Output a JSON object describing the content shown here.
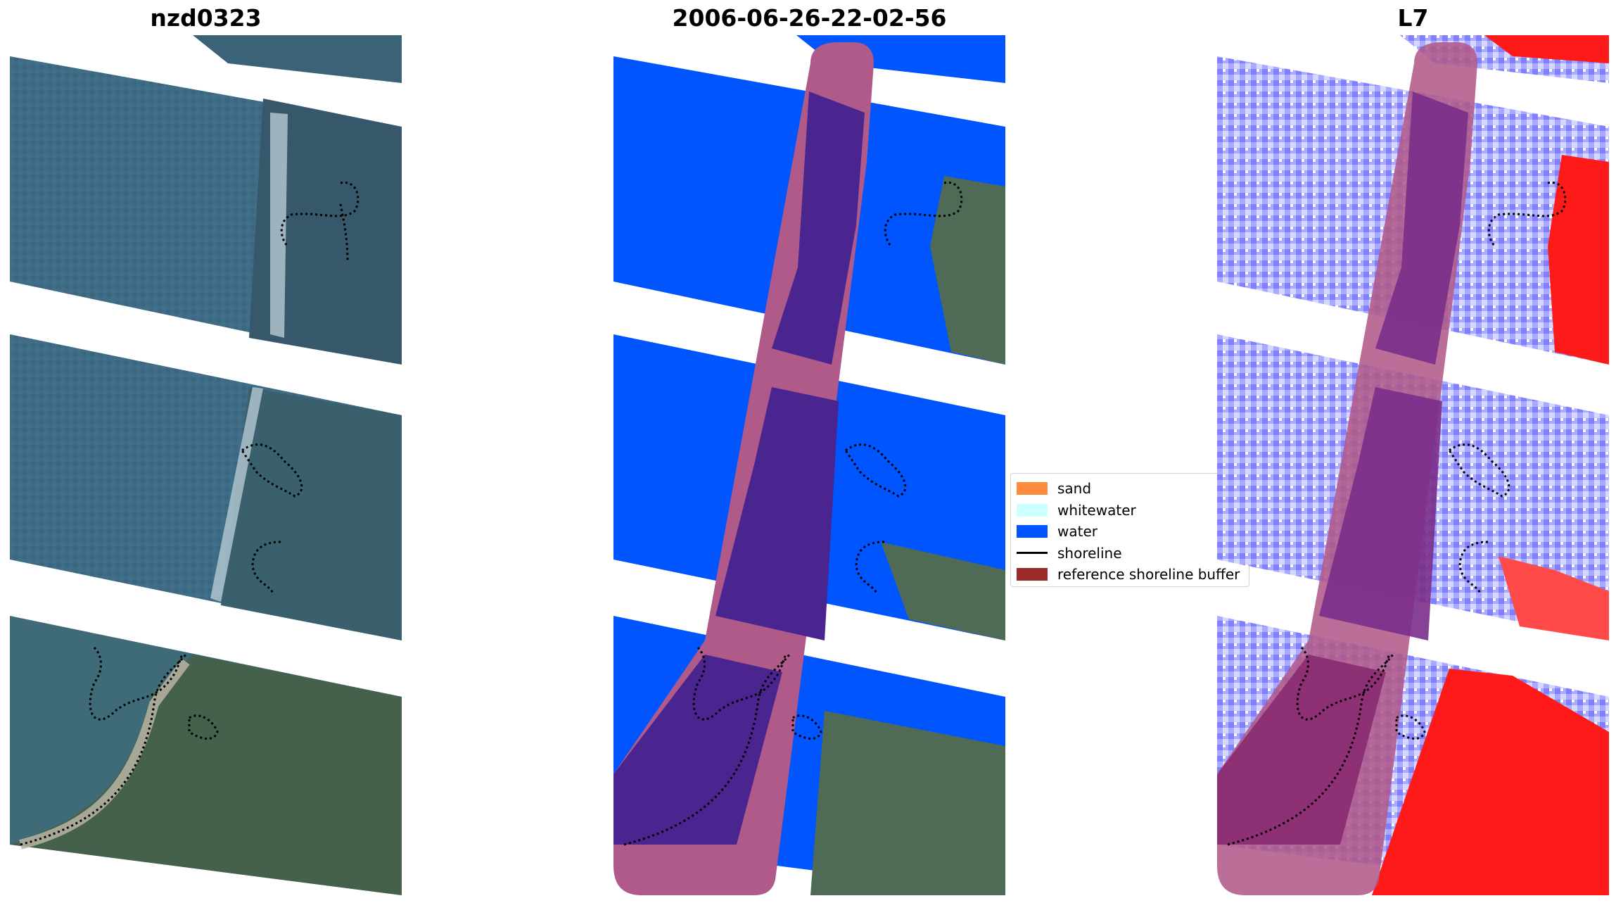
{
  "panels": [
    {
      "title": "nzd0323"
    },
    {
      "title": "2006-06-26-22-02-56"
    },
    {
      "title": "L7"
    }
  ],
  "legend": [
    {
      "label": "sand",
      "color": "#ff8c3c",
      "kind": "patch"
    },
    {
      "label": "whitewater",
      "color": "#ccffff",
      "kind": "patch"
    },
    {
      "label": "water",
      "color": "#0055ff",
      "kind": "patch"
    },
    {
      "label": "shoreline",
      "color": "#000000",
      "kind": "line"
    },
    {
      "label": "reference shoreline buffer",
      "color": "#9b2c2c",
      "kind": "patch"
    }
  ],
  "colors": {
    "rgb_water": "#3e6b85",
    "rgb_land": "#4f6b4a",
    "class_water": "#0055ff",
    "buffer": "#b05a8a",
    "buffer_overlap": "#4a2590",
    "index_low": "#7a7aff",
    "index_high": "#ff1a1a"
  }
}
